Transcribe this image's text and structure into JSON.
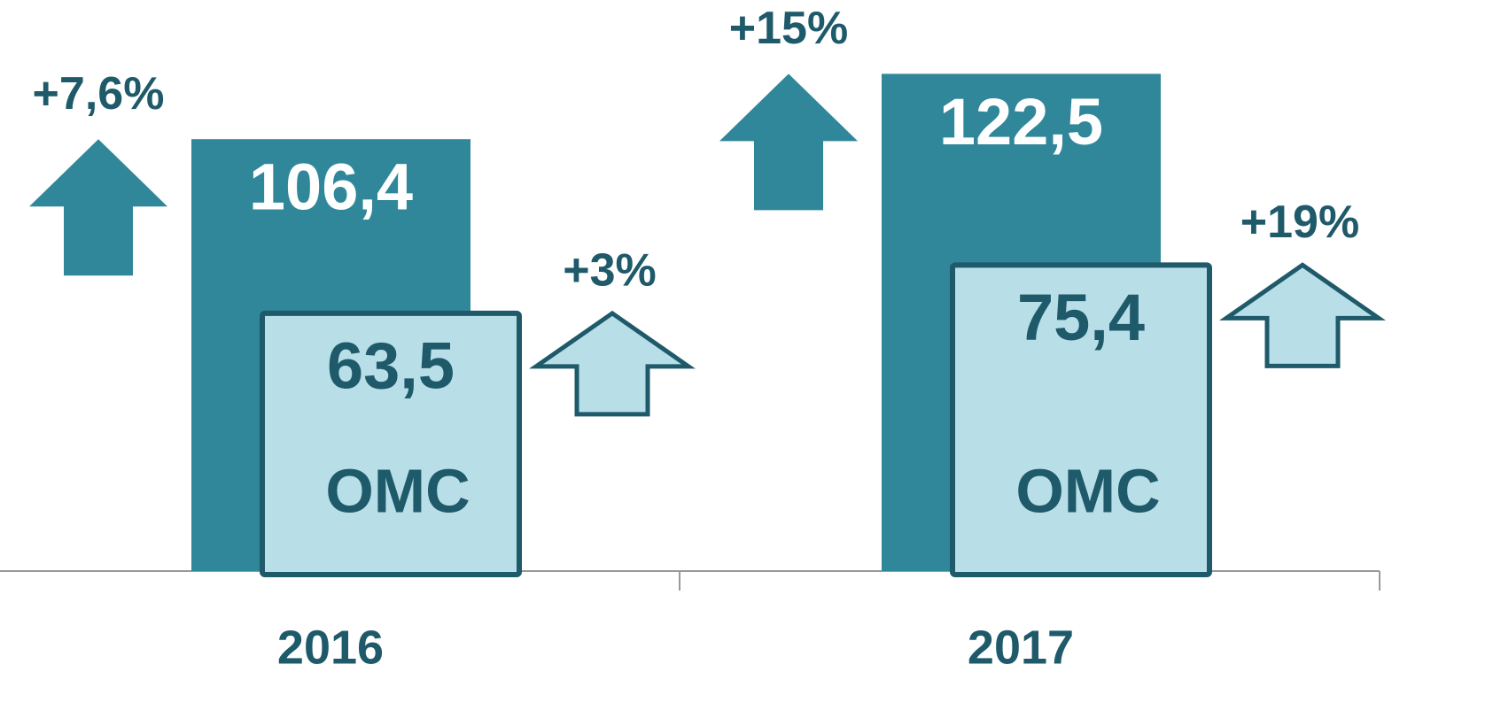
{
  "chart_data": {
    "type": "bar",
    "categories": [
      "2016",
      "2017"
    ],
    "ylim": [
      0,
      130
    ],
    "series": [
      {
        "color": "#30879a",
        "values": [
          106.4,
          122.5
        ],
        "value_labels": [
          "106,4",
          "122,5"
        ],
        "growth_labels": [
          "+7,6%",
          "+15%"
        ]
      },
      {
        "name": "ОМС",
        "color": "#b8dee8",
        "values": [
          63.5,
          75.4
        ],
        "value_labels": [
          "63,5",
          "75,4"
        ],
        "growth_labels": [
          "+3%",
          "+19%"
        ]
      }
    ]
  }
}
